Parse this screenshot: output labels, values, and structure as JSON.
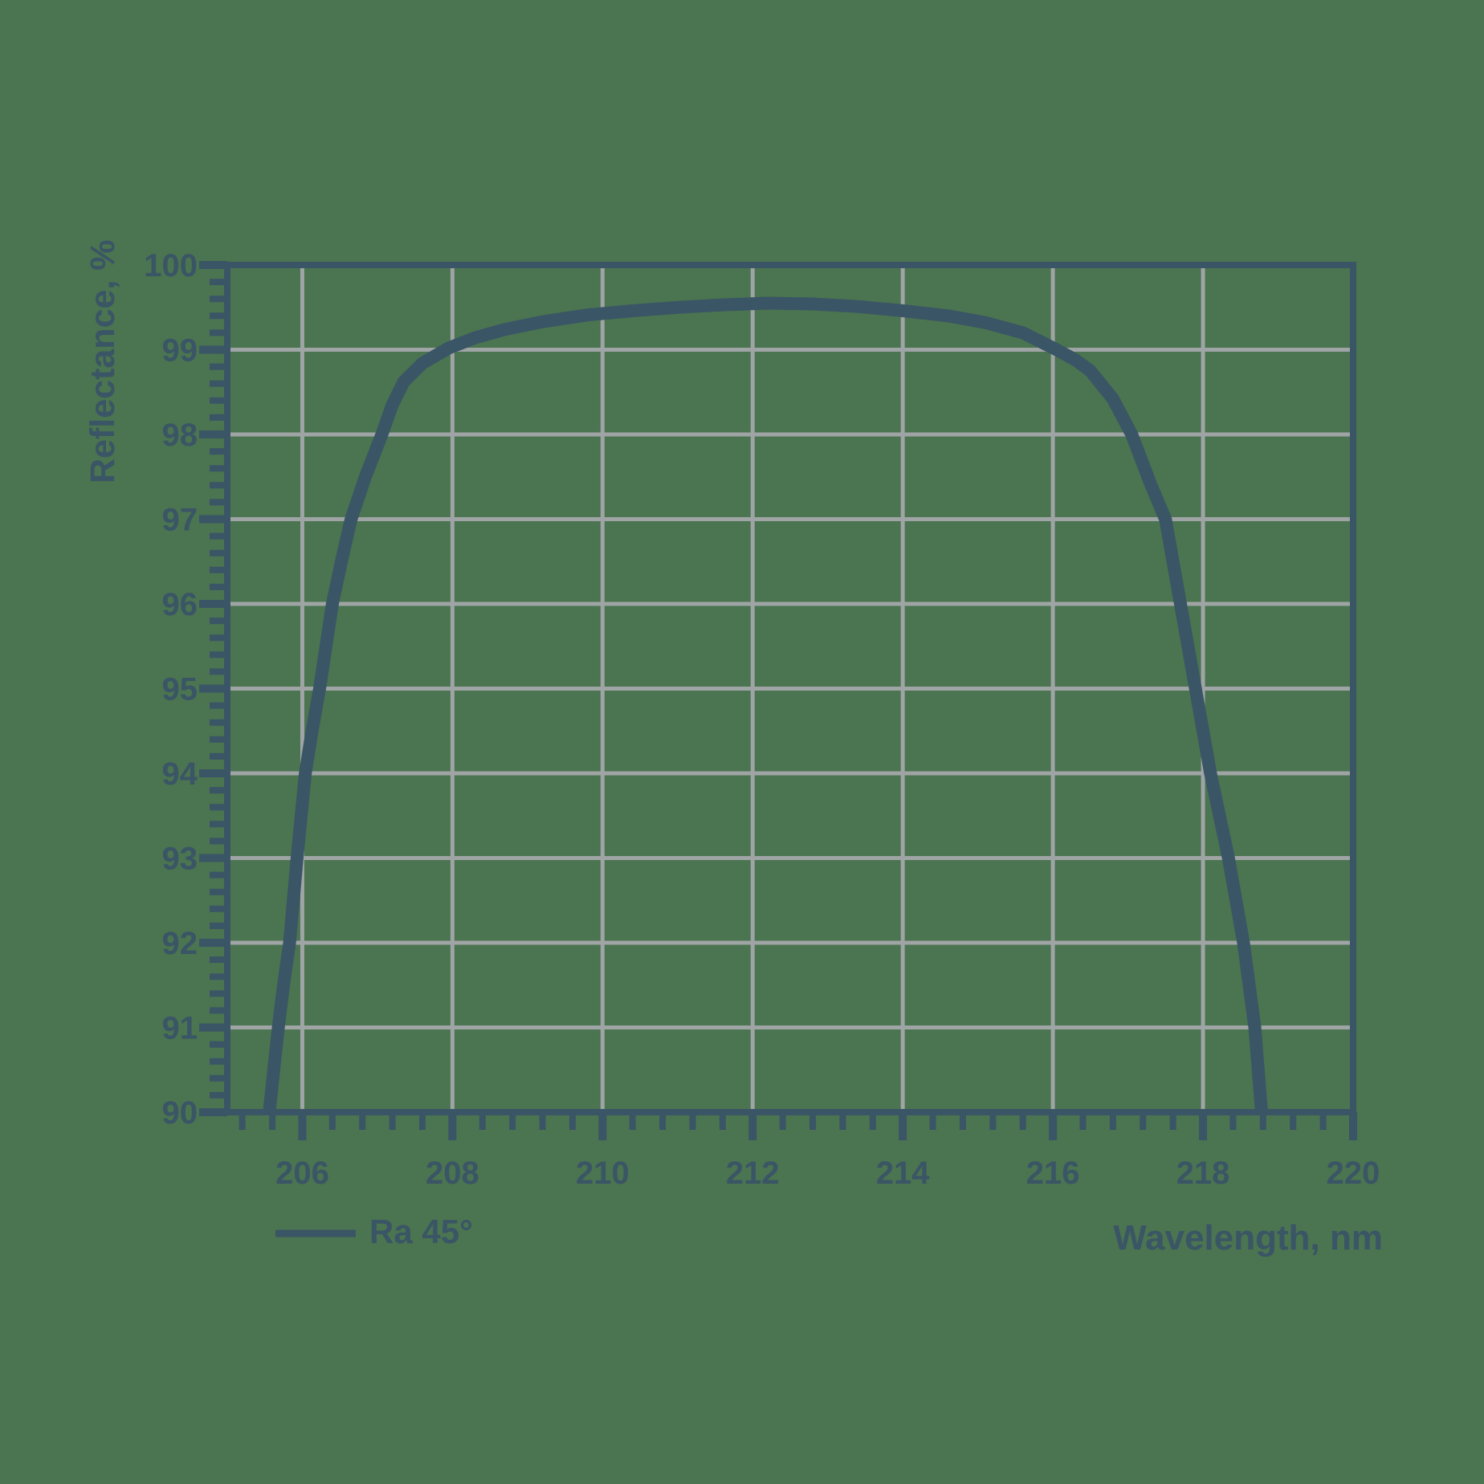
{
  "colors": {
    "background": "#4b7451",
    "foreground": "#3a5565",
    "gridline": "#9fa4a4"
  },
  "chart": {
    "x_axis": {
      "title": "Wavelength, nm",
      "min": 205,
      "max": 220,
      "major_ticks": [
        206,
        208,
        210,
        212,
        214,
        216,
        218,
        220
      ],
      "minor_step": 0.4
    },
    "y_axis": {
      "title": "Reflectance, %",
      "min": 90,
      "max": 100,
      "major_ticks": [
        100,
        99,
        98,
        97,
        96,
        95,
        94,
        93,
        92,
        91,
        90
      ],
      "minor_step": 0.2
    },
    "legend": {
      "label": "Ra 45°"
    }
  },
  "chart_data": {
    "type": "line",
    "title": "",
    "xlabel": "Wavelength, nm",
    "ylabel": "Reflectance, %",
    "xlim": [
      205,
      220
    ],
    "ylim": [
      90,
      100
    ],
    "grid": true,
    "legend_position": "bottom-left",
    "series": [
      {
        "name": "Ra 45°",
        "points": [
          [
            205.56,
            90.0
          ],
          [
            205.62,
            90.5
          ],
          [
            205.68,
            91.0
          ],
          [
            205.75,
            91.5
          ],
          [
            205.83,
            92.0
          ],
          [
            205.93,
            93.0
          ],
          [
            206.04,
            94.0
          ],
          [
            206.13,
            94.5
          ],
          [
            206.23,
            95.0
          ],
          [
            206.4,
            96.0
          ],
          [
            206.52,
            96.5
          ],
          [
            206.65,
            97.0
          ],
          [
            206.84,
            97.5
          ],
          [
            207.06,
            98.0
          ],
          [
            207.2,
            98.35
          ],
          [
            207.35,
            98.62
          ],
          [
            207.6,
            98.84
          ],
          [
            207.95,
            99.02
          ],
          [
            208.3,
            99.14
          ],
          [
            208.7,
            99.24
          ],
          [
            209.2,
            99.33
          ],
          [
            209.8,
            99.41
          ],
          [
            210.4,
            99.46
          ],
          [
            211.0,
            99.5
          ],
          [
            211.6,
            99.53
          ],
          [
            212.2,
            99.55
          ],
          [
            212.8,
            99.54
          ],
          [
            213.4,
            99.51
          ],
          [
            214.0,
            99.46
          ],
          [
            214.6,
            99.4
          ],
          [
            215.1,
            99.32
          ],
          [
            215.6,
            99.2
          ],
          [
            216.05,
            99.0
          ],
          [
            216.3,
            98.88
          ],
          [
            216.5,
            98.75
          ],
          [
            216.8,
            98.42
          ],
          [
            217.05,
            98.0
          ],
          [
            217.3,
            97.42
          ],
          [
            217.5,
            97.0
          ],
          [
            217.7,
            96.0
          ],
          [
            217.9,
            95.0
          ],
          [
            218.1,
            94.0
          ],
          [
            218.34,
            93.0
          ],
          [
            218.54,
            92.0
          ],
          [
            218.69,
            91.0
          ],
          [
            218.78,
            90.0
          ]
        ]
      }
    ]
  }
}
